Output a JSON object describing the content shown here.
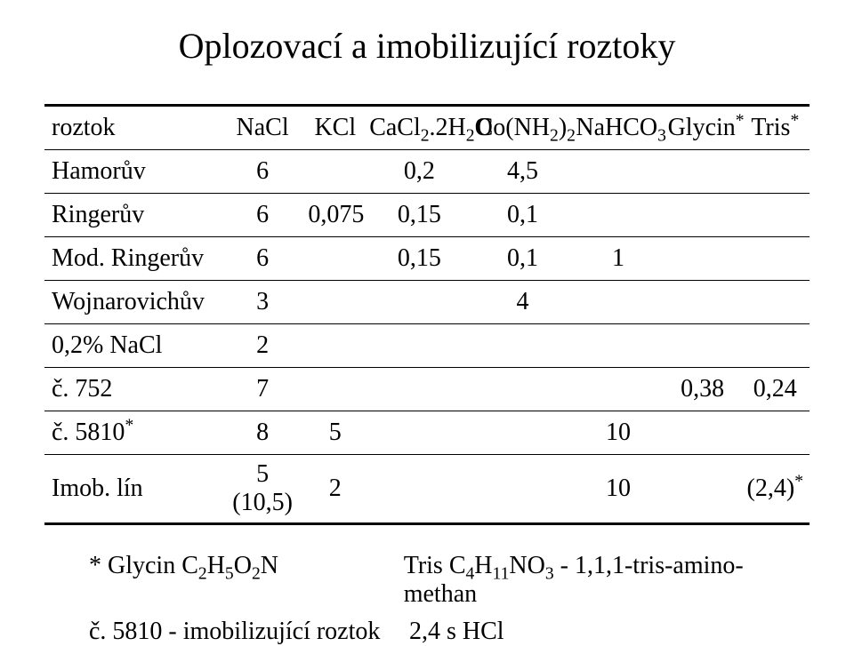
{
  "title": "Oplozovací a imobilizující roztoky",
  "columns": {
    "roztok": "roztok",
    "nacl": "NaCl",
    "kcl": "KCl",
    "cacl": {
      "base": "CaCl",
      "sub1": "2",
      "mid": ".2H",
      "sub2": "2",
      "tail": "O"
    },
    "conh": {
      "base": "Co(NH",
      "sub1": "2",
      "mid": ")",
      "sub2": "2"
    },
    "nahco": {
      "base": "NaHCO",
      "sub": "3"
    },
    "glycin": {
      "base": "Glycin",
      "sup": "*"
    },
    "tris": {
      "base": "Tris",
      "sup": "*"
    }
  },
  "rows": [
    {
      "name": "Hamorův",
      "nacl": "6",
      "cacl": "0,2",
      "conh": "4,5"
    },
    {
      "name": "Ringerův",
      "nacl": "6",
      "kcl": "0,075",
      "cacl": "0,15",
      "conh": "0,1"
    },
    {
      "name": "Mod. Ringerův",
      "nacl": "6",
      "cacl": "0,15",
      "conh": "0,1",
      "nahco": "1"
    },
    {
      "name": "Wojnarovichův",
      "nacl": "3",
      "conh": "4"
    },
    {
      "name": "0,2% NaCl",
      "nacl": "2"
    },
    {
      "name": "č. 752",
      "nacl": "7",
      "glycin": "0,38",
      "tris": "0,24"
    },
    {
      "name": "č. 5810",
      "name_sup": "*",
      "nacl": "8",
      "kcl": "5",
      "nahco": "10"
    },
    {
      "name": "Imob. lín",
      "nacl": "5 (10,5)",
      "kcl": "2",
      "nahco": "10",
      "tris": "(2,4)",
      "tris_sup": "*"
    }
  ],
  "footnotes": {
    "f1": {
      "left_prefix": "* Glycin C",
      "left_f": {
        "a": "2",
        "b": "H",
        "c": "5",
        "d": "O",
        "e": "2",
        "f": "N"
      },
      "right_prefix": "Tris C",
      "right_f": {
        "a": "4",
        "b": "H",
        "c": "11",
        "d": "NO",
        "e": "3"
      },
      "right_tail": " - 1,1,1-tris-amino-methan"
    },
    "f2": {
      "left": "č. 5810 - imobilizující roztok",
      "right": "2,4 s HCl"
    }
  }
}
